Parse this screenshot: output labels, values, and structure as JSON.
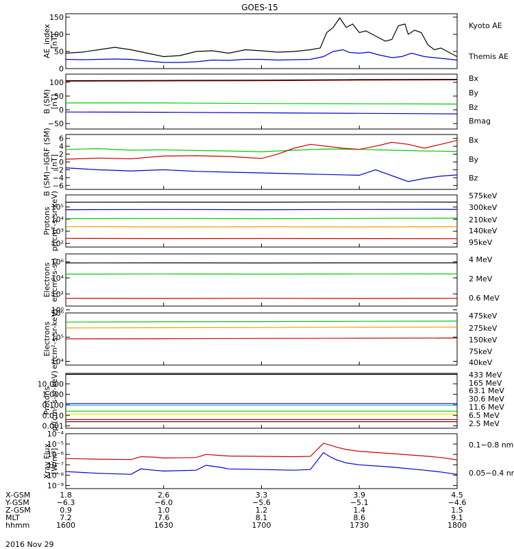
{
  "chart_data": {
    "type": "line",
    "title": "GOES-15",
    "date": "2016 Nov 29",
    "panels": [
      {
        "id": "ae",
        "ylabel": [
          "AE_index",
          "[nT]"
        ],
        "ticks": [
          "150",
          "100",
          "50",
          "0"
        ],
        "tickvals": [
          150,
          100,
          50,
          0
        ],
        "ylim": [
          0,
          160
        ],
        "log": false,
        "series": [
          {
            "name": "Kyoto AE",
            "color": "#0000cc",
            "x": [
              1600,
              1605,
              1610,
              1615,
              1620,
              1625,
              1630,
              1635,
              1640,
              1645,
              1650,
              1655,
              1700,
              1705,
              1710,
              1715,
              1719,
              1722,
              1725,
              1727,
              1730,
              1733,
              1736,
              1740,
              1743,
              1746,
              1750,
              1755,
              1800
            ],
            "y": [
              27,
              26,
              27,
              28,
              27,
              22,
              18,
              18,
              20,
              25,
              24,
              27,
              27,
              25,
              26,
              27,
              35,
              50,
              55,
              47,
              45,
              48,
              40,
              32,
              35,
              45,
              35,
              30,
              25
            ]
          },
          {
            "name": "Themis AE",
            "color": "#000000",
            "x": [
              1600,
              1605,
              1610,
              1615,
              1620,
              1625,
              1630,
              1635,
              1640,
              1645,
              1650,
              1655,
              1700,
              1705,
              1710,
              1715,
              1718,
              1720,
              1722,
              1724,
              1726,
              1728,
              1730,
              1732,
              1734,
              1736,
              1738,
              1740,
              1742,
              1744,
              1745,
              1747,
              1749,
              1751,
              1753,
              1755,
              1758,
              1800
            ],
            "y": [
              45,
              48,
              55,
              62,
              55,
              45,
              35,
              38,
              50,
              52,
              45,
              55,
              52,
              48,
              50,
              55,
              60,
              105,
              120,
              148,
              120,
              130,
              105,
              110,
              100,
              90,
              80,
              85,
              125,
              130,
              100,
              112,
              105,
              70,
              55,
              60,
              45,
              35
            ]
          }
        ]
      },
      {
        "id": "bsm",
        "ylabel": [
          "B (SM)",
          "[nT]"
        ],
        "ticks": [
          "100",
          "50",
          "0",
          "−50"
        ],
        "tickvals": [
          100,
          50,
          0,
          -50
        ],
        "ylim": [
          -70,
          130
        ],
        "log": false,
        "series": [
          {
            "name": "Bx",
            "color": "#0000cc",
            "x": [
              1600,
              1630,
              1700,
              1730,
              1800
            ],
            "y": [
              -8,
              -9,
              -11,
              -13,
              -15
            ]
          },
          {
            "name": "By",
            "color": "#00cc00",
            "x": [
              1600,
              1630,
              1700,
              1730,
              1800
            ],
            "y": [
              25,
              25,
              23,
              22,
              21
            ]
          },
          {
            "name": "Bz",
            "color": "#cc0000",
            "x": [
              1600,
              1630,
              1700,
              1730,
              1800
            ],
            "y": [
              104,
              105,
              106,
              108,
              109
            ]
          },
          {
            "name": "Bmag",
            "color": "#000000",
            "x": [
              1600,
              1630,
              1700,
              1730,
              1800
            ],
            "y": [
              106,
              107,
              108,
              110,
              111
            ]
          }
        ]
      },
      {
        "id": "bigrf",
        "ylabel": [
          "B (SM)−IGRF (SM)",
          "[nT]"
        ],
        "ticks": [
          "6",
          "4",
          "2",
          "0",
          "−2",
          "−4",
          "−6"
        ],
        "tickvals": [
          6,
          4,
          2,
          0,
          -2,
          -4,
          -6
        ],
        "ylim": [
          -7,
          7
        ],
        "log": false,
        "series": [
          {
            "name": "Bx",
            "color": "#0000cc",
            "x": [
              1600,
              1610,
              1620,
              1630,
              1640,
              1650,
              1700,
              1710,
              1720,
              1730,
              1735,
              1740,
              1745,
              1750,
              1755,
              1800
            ],
            "y": [
              -1.5,
              -2.0,
              -2.3,
              -2.0,
              -2.4,
              -2.6,
              -2.8,
              -3.0,
              -3.2,
              -3.4,
              -2.0,
              -3.5,
              -5.0,
              -4.2,
              -3.6,
              -3.3
            ]
          },
          {
            "name": "By",
            "color": "#00cc00",
            "x": [
              1600,
              1610,
              1620,
              1630,
              1640,
              1650,
              1700,
              1710,
              1720,
              1730,
              1740,
              1750,
              1800
            ],
            "y": [
              3.2,
              3.4,
              3.0,
              3.1,
              2.9,
              2.8,
              2.6,
              3.0,
              3.3,
              3.2,
              3.0,
              2.8,
              2.7
            ]
          },
          {
            "name": "Bz",
            "color": "#cc0000",
            "x": [
              1600,
              1610,
              1620,
              1630,
              1640,
              1650,
              1700,
              1705,
              1710,
              1715,
              1720,
              1725,
              1730,
              1735,
              1740,
              1745,
              1750,
              1755,
              1800
            ],
            "y": [
              0.7,
              1.0,
              0.8,
              1.5,
              1.6,
              1.4,
              0.9,
              2.0,
              3.5,
              4.5,
              4.0,
              3.5,
              3.2,
              4.0,
              5.0,
              4.5,
              3.5,
              4.5,
              5.5
            ]
          }
        ]
      },
      {
        "id": "pflux",
        "ylabel": [
          "Protons",
          "p/(cm²-s-sr-keV)"
        ],
        "ticks": [
          "10⁵",
          "10⁴",
          "10³",
          "10²"
        ],
        "tickvals": [
          100000,
          10000,
          1000,
          100
        ],
        "ylim": [
          50,
          1000000
        ],
        "log": true,
        "series": [
          {
            "name": "575keV",
            "color": "#cc0000",
            "x": [
              1600,
              1630,
              1700,
              1730,
              1800
            ],
            "y": [
              260,
              250,
              255,
              250,
              245
            ]
          },
          {
            "name": "300keV",
            "color": "#ff9900",
            "x": [
              1600,
              1630,
              1700,
              1730,
              1800
            ],
            "y": [
              2400,
              2300,
              2350,
              2300,
              2350
            ]
          },
          {
            "name": "210keV",
            "color": "#00cc00",
            "x": [
              1600,
              1630,
              1700,
              1730,
              1800
            ],
            "y": [
              11000,
              11500,
              11000,
              11500,
              12000
            ]
          },
          {
            "name": "140keV",
            "color": "#0000cc",
            "x": [
              1600,
              1630,
              1700,
              1730,
              1800
            ],
            "y": [
              60000,
              62000,
              60000,
              62000,
              64000
            ]
          },
          {
            "name": "95keV",
            "color": "#000000",
            "x": [
              1600,
              1630,
              1700,
              1730,
              1800
            ],
            "y": [
              250000,
              255000,
              250000,
              260000,
              255000
            ]
          }
        ]
      },
      {
        "id": "eflux1",
        "ylabel": [
          "Electrons",
          "e/(cm²-s-sr)"
        ],
        "ticks": [
          "10⁶",
          "10⁴",
          "10²",
          "10⁰"
        ],
        "tickvals": [
          1000000,
          10000,
          100,
          1
        ],
        "ylim": [
          3,
          10000000
        ],
        "log": true,
        "series": [
          {
            "name": "4 MeV",
            "color": "#cc0000",
            "x": [
              1600,
              1630,
              1700,
              1730,
              1800
            ],
            "y": [
              28,
              27,
              28,
              27,
              28
            ]
          },
          {
            "name": "2 MeV",
            "color": "#00cc00",
            "x": [
              1600,
              1630,
              1700,
              1730,
              1800
            ],
            "y": [
              30000,
              31000,
              30000,
              31000,
              32000
            ]
          },
          {
            "name": "0.6 MeV",
            "color": "#000000",
            "x": [
              1600,
              1630,
              1700,
              1730,
              1800
            ],
            "y": [
              750000,
              760000,
              750000,
              770000,
              760000
            ]
          }
        ]
      },
      {
        "id": "eflux2",
        "ylabel": [
          "Electrons",
          "e/(cm²-s-sr-keV)"
        ],
        "ticks": [
          "10⁶",
          "10⁵",
          "10⁴"
        ],
        "tickvals": [
          1000000,
          100000,
          10000
        ],
        "ylim": [
          7000,
          1000000
        ],
        "log": true,
        "series": [
          {
            "name": "475keV",
            "color": "#cc0000",
            "x": [
              1600,
              1630,
              1700,
              1730,
              1800
            ],
            "y": [
              85000,
              86000,
              88000,
              90000,
              92000
            ]
          },
          {
            "name": "275keV",
            "color": "#ff9900",
            "x": [
              1600,
              1630,
              1700,
              1730,
              1800
            ],
            "y": [
              240000,
              245000,
              250000,
              255000,
              260000
            ]
          },
          {
            "name": "150keV",
            "color": "#00cc00",
            "x": [
              1600,
              1630,
              1700,
              1730,
              1800
            ],
            "y": [
              420000,
              430000,
              440000,
              450000,
              460000
            ]
          },
          {
            "name": "75keV",
            "color": "#0000cc",
            "x": [],
            "y": []
          },
          {
            "name": "40keV",
            "color": "#000000",
            "x": [],
            "y": []
          }
        ]
      },
      {
        "id": "phigh",
        "ylabel": [
          "Protons",
          "p/(cm²-s-sr-keV)"
        ],
        "ticks": [
          "10.000",
          "1.000",
          "0.100",
          "0.010",
          "0.001"
        ],
        "tickvals": [
          10,
          1,
          0.1,
          0.01,
          0.001
        ],
        "ylim": [
          0.0006,
          100
        ],
        "log": true,
        "series": [
          {
            "name": "433 MeV",
            "color": "#000000",
            "x": [
              1600,
              1630,
              1700,
              1730,
              1800
            ],
            "y": [
              80,
              80,
              80,
              80,
              80
            ]
          },
          {
            "name": "165 MeV",
            "color": "#cc0000",
            "x": [
              1600,
              1630,
              1700,
              1730,
              1800
            ],
            "y": [
              0.004,
              0.004,
              0.004,
              0.004,
              0.004
            ]
          },
          {
            "name": "63.1 MeV",
            "color": "#e6e600",
            "x": [
              1600,
              1630,
              1700,
              1730,
              1800
            ],
            "y": [
              0.013,
              0.013,
              0.013,
              0.013,
              0.013
            ]
          },
          {
            "name": "30.6 MeV",
            "color": "#00cc00",
            "x": [
              1600,
              1630,
              1700,
              1730,
              1800
            ],
            "y": [
              0.025,
              0.025,
              0.025,
              0.025,
              0.025
            ]
          },
          {
            "name": "11.6 MeV",
            "color": "#00bbee",
            "x": [
              1600,
              1630,
              1700,
              1730,
              1800
            ],
            "y": [
              0.09,
              0.09,
              0.09,
              0.09,
              0.09
            ]
          },
          {
            "name": "6.5 MeV",
            "color": "#0000cc",
            "x": [
              1600,
              1630,
              1700,
              1730,
              1800
            ],
            "y": [
              0.13,
              0.13,
              0.13,
              0.13,
              0.13
            ]
          },
          {
            "name": "2.5 MeV",
            "color": "#800000",
            "x": [
              1600,
              1630,
              1700,
              1730,
              1800
            ],
            "y": [
              0.0025,
              0.0025,
              0.0025,
              0.0025,
              0.0025
            ]
          }
        ]
      },
      {
        "id": "xray",
        "ylabel": [
          "Xray Flux",
          "[W/m²]"
        ],
        "ticks": [
          "10⁻⁴",
          "10⁻⁵",
          "10⁻⁶",
          "10⁻⁷",
          "10⁻⁸",
          "10⁻⁹"
        ],
        "tickvals": [
          0.0001,
          1e-05,
          1e-06,
          1e-07,
          1e-08,
          1e-09
        ],
        "ylim": [
          5e-10,
          0.0001
        ],
        "log": true,
        "series": [
          {
            "name": "0.1−0.8 nm",
            "color": "#cc0000",
            "x": [
              1600,
              1610,
              1620,
              1623,
              1627,
              1630,
              1640,
              1643,
              1647,
              1650,
              1700,
              1710,
              1715,
              1719,
              1721,
              1723,
              1726,
              1730,
              1740,
              1750,
              1755,
              1800
            ],
            "y": [
              4e-07,
              3.5e-07,
              3.2e-07,
              6e-07,
              5.5e-07,
              4.5e-07,
              5e-07,
              1e-06,
              8e-07,
              7e-07,
              6.5e-07,
              6e-07,
              6.5e-07,
              1.2e-05,
              8e-06,
              5e-06,
              3e-06,
              2e-06,
              1.2e-06,
              7e-07,
              5e-07,
              3e-07
            ]
          },
          {
            "name": "0.05−0.4 nm",
            "color": "#0000cc",
            "x": [
              1600,
              1610,
              1620,
              1623,
              1627,
              1630,
              1640,
              1643,
              1647,
              1650,
              1700,
              1710,
              1715,
              1719,
              1721,
              1723,
              1726,
              1730,
              1740,
              1750,
              1755,
              1800
            ],
            "y": [
              2.2e-08,
              1.5e-08,
              1.2e-08,
              4e-08,
              3e-08,
              2.5e-08,
              3e-08,
              9e-08,
              6e-08,
              4e-08,
              3.5e-08,
              3e-08,
              3.5e-08,
              1.5e-06,
              6e-07,
              3e-07,
              1.5e-07,
              1e-07,
              6e-08,
              3e-08,
              2e-08,
              1.2e-08
            ]
          }
        ]
      }
    ],
    "x_axis": {
      "xlim": [
        1600,
        1800
      ],
      "tick_times": [
        1600,
        1630,
        1700,
        1730,
        1800
      ],
      "row_labels": [
        "X-GSM",
        "Y-GSM",
        "Z-GSM",
        "MLT",
        "hhmm"
      ],
      "columns": [
        [
          "1.8",
          "−6.3",
          "0.9",
          "7.2",
          "1600"
        ],
        [
          "2.6",
          "−6.0",
          "1.0",
          "7.6",
          "1630"
        ],
        [
          "3.3",
          "−5.6",
          "1.2",
          "8.1",
          "1700"
        ],
        [
          "3.9",
          "−5.1",
          "1.4",
          "8.6",
          "1730"
        ],
        [
          "4.5",
          "−4.6",
          "1.5",
          "9.1",
          "1800"
        ]
      ]
    }
  }
}
